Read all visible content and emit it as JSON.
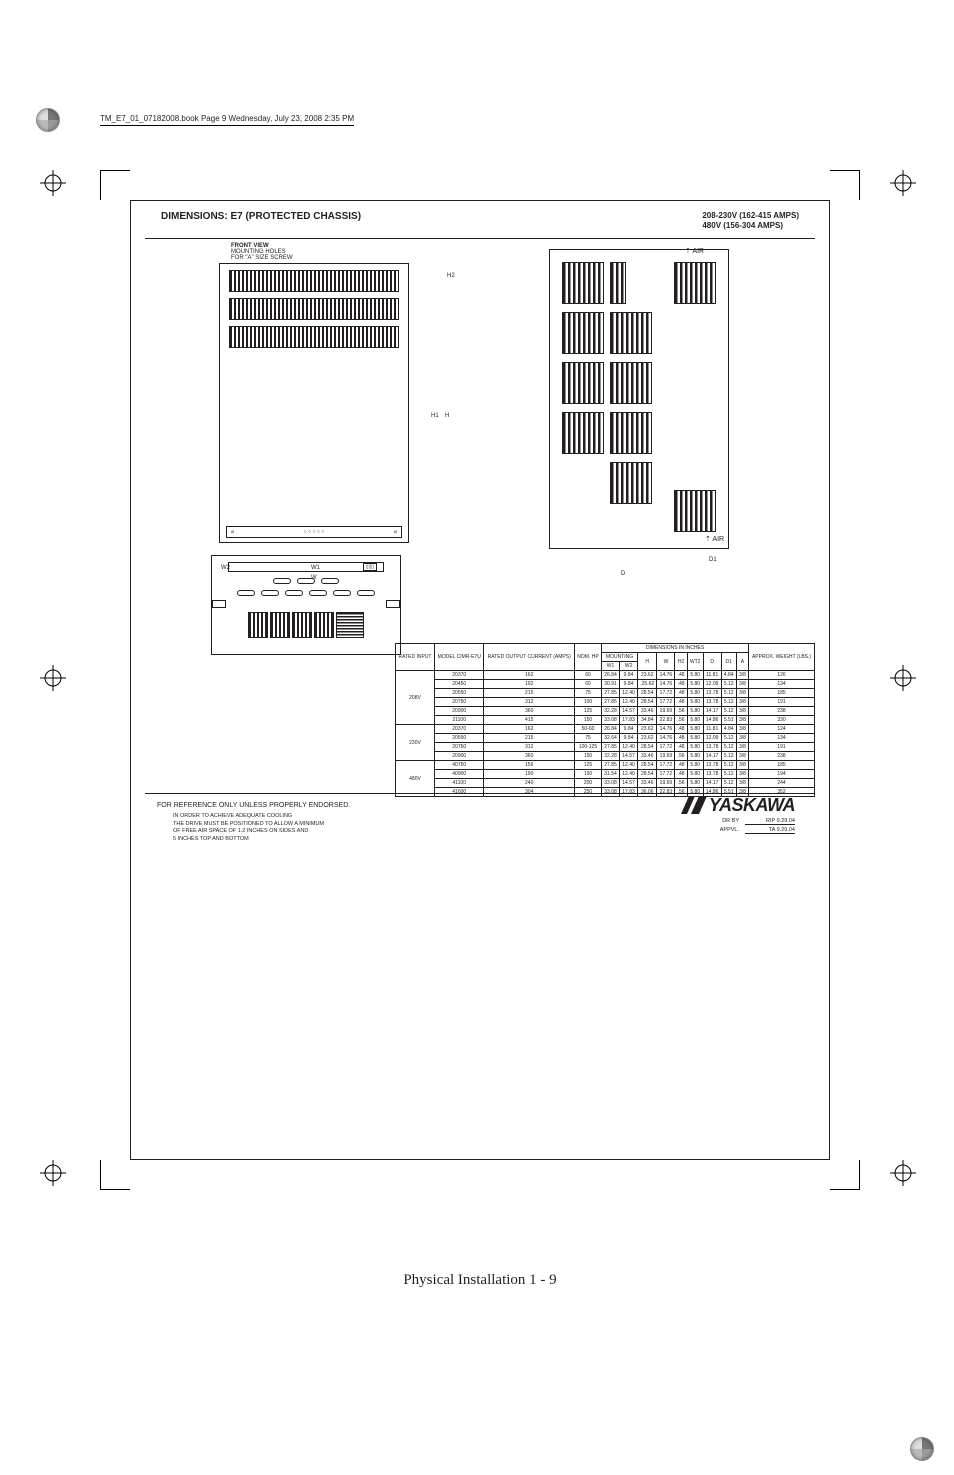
{
  "book_info": "TM_E7_01_07182008.book  Page 9  Wednesday, July 23, 2008  2:35 PM",
  "header": {
    "left": "DIMENSIONS: E7 (PROTECTED CHASSIS)",
    "right_line1": "208-230V (162-415 AMPS)",
    "right_line2": "480V (156-304 AMPS)"
  },
  "front_view": {
    "title": "FRONT VIEW",
    "sub1": "MOUNTING HOLES",
    "sub2": "FOR \"A\" SIZE SCREW",
    "dim_h2": "H2",
    "dim_h1": "H1",
    "dim_h": "H",
    "dim_w2": "W2",
    "dim_w1": "W1",
    "dim_w": "W"
  },
  "side_view": {
    "air": "AIR",
    "dim_d": "D",
    "dim_d1": "D1"
  },
  "table": {
    "h_rated": "RATED INPUT",
    "h_model": "MODEL CIMR-E7U",
    "h_output": "RATED OUTPUT CURRENT (AMPS)",
    "h_nom": "NOM. HP",
    "h_dims": "DIMENSIONS IN INCHES",
    "h_mounting": "MOUNTING",
    "h_w1": "W1",
    "h_w2": "W2",
    "h_h": "H",
    "h_w": "W",
    "h_h2": "H2",
    "h_wt2": "WT2",
    "h_d": "D",
    "h_d1": "D1",
    "h_a": "A",
    "h_weight": "APPROX. WEIGHT (LBS.)",
    "groups": [
      {
        "label": "208V",
        "rows": [
          [
            "20370",
            "162",
            "60",
            "26.84",
            "9.84",
            "23.62",
            "14.76",
            ".48",
            "5.80",
            "11.81",
            "4.84",
            "3/8",
            "126"
          ],
          [
            "20450",
            "192",
            "60",
            "30.91",
            "9.84",
            ".25.62",
            "14.76",
            ".48",
            "5.80",
            "12.09",
            "5.12",
            "3/8",
            "134"
          ],
          [
            "20550",
            "215",
            "75",
            "27.85",
            "12.40",
            "28.54",
            "17.72",
            ".48",
            "5.80",
            "13.78",
            "5.12",
            "3/8",
            "185"
          ],
          [
            "20750",
            "312",
            "100",
            "27.85",
            "12.40",
            "28.54",
            "17.72",
            ".48",
            "5.80",
            "13.78",
            "5.12",
            "3/8",
            "191"
          ],
          [
            "20900",
            "360",
            "125",
            "32.28",
            "14.57",
            "33.46",
            "19.69",
            ".56",
            "5.80",
            "14.17",
            "5.12",
            "3/8",
            "238"
          ],
          [
            "21100",
            "415",
            "150",
            "33.08",
            "17.83",
            "34.84",
            "22.83",
            ".56",
            "5.80",
            "14.86",
            "5.51",
            "3/8",
            "330"
          ]
        ]
      },
      {
        "label": "230V",
        "rows": [
          [
            "20370",
            "162",
            "50-60",
            "26.84",
            "9.84",
            "23.62",
            "14.76",
            ".48",
            "5.80",
            "11.81",
            "4.84",
            "3/8",
            "124"
          ],
          [
            "20550",
            "215",
            "75",
            "32.64",
            "9.84",
            "23.62",
            "14.76",
            ".48",
            "5.80",
            "12.09",
            "5.12",
            "3/8",
            "134"
          ],
          [
            "20750",
            "312",
            "100-125",
            "27.85",
            "12.40",
            "28.54",
            "17.72",
            ".48",
            "5.80",
            "13.78",
            "5.12",
            "3/8",
            "191"
          ],
          [
            "20900",
            "360",
            "150",
            "32.28",
            "14.57",
            "33.46",
            "19.69",
            ".56",
            "5.80",
            "14.17",
            "5.12",
            "3/8",
            "238"
          ]
        ]
      },
      {
        "label": "480V",
        "rows": [
          [
            "40750",
            "156",
            "125",
            "27.85",
            "12.40",
            "28.54",
            "17.72",
            ".48",
            "5.80",
            "13.78",
            "5.12",
            "3/8",
            "185"
          ],
          [
            "40900",
            "190",
            "150",
            "31.54",
            "12.40",
            "28.54",
            "17.72",
            ".48",
            "5.80",
            "13.78",
            "5.12",
            "3/8",
            "194"
          ],
          [
            "41100",
            "240",
            "200",
            "33.08",
            "14.57",
            "33.46",
            "19.69",
            ".56",
            "5.80",
            "14.17",
            "5.12",
            "3/8",
            "244"
          ],
          [
            "41600",
            "304",
            "250",
            "33.08",
            "17.83",
            "36.06",
            "22.83",
            ".56",
            "5.80",
            "14.86",
            "5.51",
            "3/8",
            "352"
          ]
        ]
      }
    ]
  },
  "footer": {
    "ref": "FOR REFERENCE ONLY UNLESS PROPERLY ENDORSED.",
    "note1": "IN ORDER TO ACHIEVE ADEQUATE COOLING",
    "note2": "THE DRIVE MUST BE POSITIONED TO ALLOW A MINIMUM",
    "note3": "OF FREE AIR SPACE OF 1.2 INCHES ON SIDES AND",
    "note4": "5 INCHES TOP AND BOTTOM",
    "brand": "YASKAWA",
    "drby": "DR BY",
    "drby_v": "RIP 9.29.04",
    "appvl": "APPVL.",
    "appvl_v": "TA 9.29.04"
  },
  "page_num": "Physical Installation   1 - 9"
}
